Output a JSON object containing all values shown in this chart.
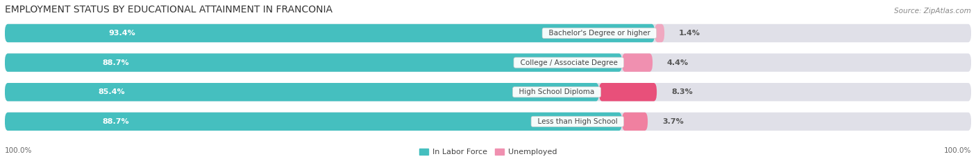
{
  "title": "EMPLOYMENT STATUS BY EDUCATIONAL ATTAINMENT IN FRANCONIA",
  "source": "Source: ZipAtlas.com",
  "categories": [
    "Less than High School",
    "High School Diploma",
    "College / Associate Degree",
    "Bachelor's Degree or higher"
  ],
  "in_labor_force": [
    88.7,
    85.4,
    88.7,
    93.4
  ],
  "unemployed": [
    3.7,
    8.3,
    4.4,
    1.4
  ],
  "labor_force_color": "#45BFBF",
  "unemployed_color_1": "#F080A0",
  "unemployed_color_2": "#E8608A",
  "unemployed_color_3": "#F090B0",
  "unemployed_color_4": "#F0A0B8",
  "unemployed_colors": [
    "#F080A0",
    "#E8507A",
    "#F090B0",
    "#F0A8C0"
  ],
  "bg_pill_color": "#E0E0E8",
  "row_sep_color": "#F8F8F8",
  "title_fontsize": 10,
  "label_fontsize": 8,
  "tick_fontsize": 7.5,
  "legend_fontsize": 8,
  "x_left_label": "100.0%",
  "x_right_label": "100.0%",
  "bar_height": 0.62,
  "xlim_left": -100,
  "xlim_right": 20,
  "lf_text_color": "white",
  "cat_text_color": "#444444",
  "pct_text_color": "#555555"
}
